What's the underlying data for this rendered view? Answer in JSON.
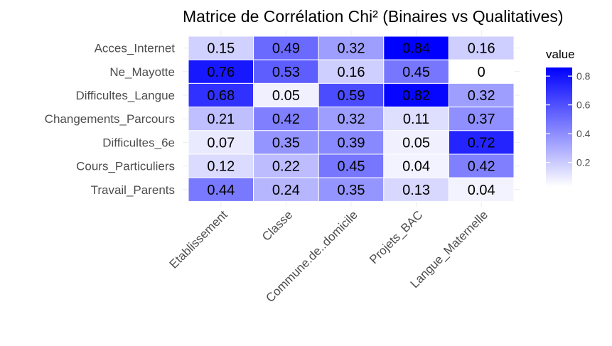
{
  "chart_data": {
    "type": "heatmap",
    "title": "Matrice de Corrélation Chi² (Binaires vs Qualitatives)",
    "x_categories": [
      "Etablissement",
      "Classe",
      "Commune.de..domicile",
      "Projets_BAC",
      "Langue_Maternelle"
    ],
    "y_categories": [
      "Acces_Internet",
      "Ne_Mayotte",
      "Difficultes_Langue",
      "Changements_Parcours",
      "Difficultes_6e",
      "Cours_Particuliers",
      "Travail_Parents"
    ],
    "values": [
      [
        0.15,
        0.49,
        0.32,
        0.84,
        0.16
      ],
      [
        0.76,
        0.53,
        0.16,
        0.45,
        0
      ],
      [
        0.68,
        0.05,
        0.59,
        0.82,
        0.32
      ],
      [
        0.21,
        0.42,
        0.32,
        0.11,
        0.37
      ],
      [
        0.07,
        0.35,
        0.39,
        0.05,
        0.72
      ],
      [
        0.12,
        0.22,
        0.45,
        0.04,
        0.42
      ],
      [
        0.44,
        0.24,
        0.35,
        0.13,
        0.04
      ]
    ],
    "color_low": "#ffffff",
    "color_high": "#0000ff",
    "value_range": [
      0,
      0.84
    ],
    "legend": {
      "title": "value",
      "ticks": [
        0.2,
        0.4,
        0.6,
        0.8
      ],
      "tick_labels": [
        "0.2",
        "0.4",
        "0.6",
        "0.8"
      ],
      "placement": "right"
    },
    "grid": true
  }
}
